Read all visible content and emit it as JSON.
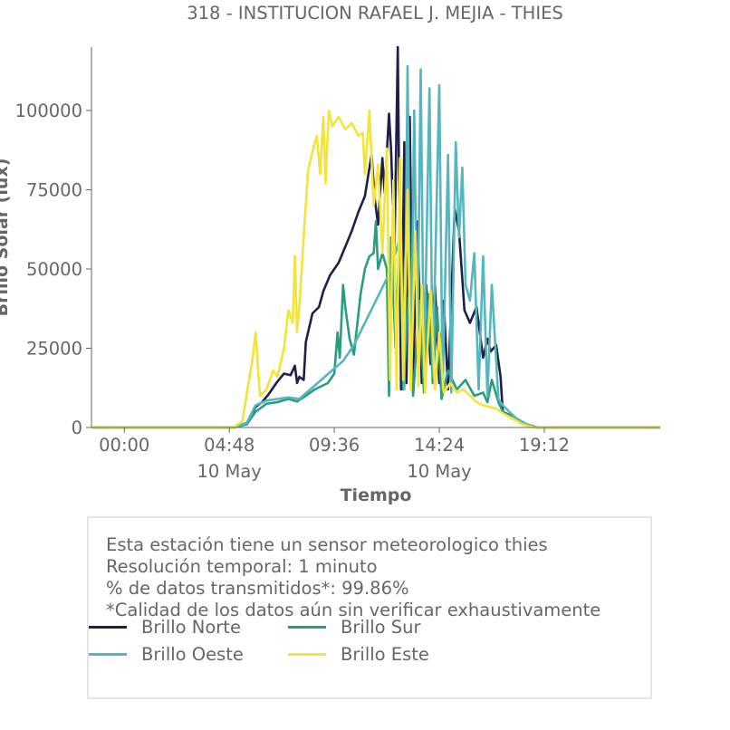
{
  "chart_data": {
    "type": "line",
    "title": "318 - INSTITUCION RAFAEL J. MEJIA - THIES",
    "xlabel": "Tiempo",
    "ylabel": "Brillo Solar (lux)",
    "x_unit": "hours since 00:00 10 May",
    "xlim": [
      -1.5,
      24.5
    ],
    "ylim": [
      0,
      120000
    ],
    "xticks": [
      {
        "x": 0.0,
        "label": "00:00",
        "sublabel": ""
      },
      {
        "x": 4.8,
        "label": "04:48",
        "sublabel": "10 May"
      },
      {
        "x": 9.6,
        "label": "09:36",
        "sublabel": ""
      },
      {
        "x": 14.4,
        "label": "14:24",
        "sublabel": "10 May"
      },
      {
        "x": 19.2,
        "label": "19:12",
        "sublabel": ""
      }
    ],
    "yticks": [
      0,
      25000,
      50000,
      75000,
      100000
    ],
    "grid": false,
    "legend_placement": "below",
    "series": [
      {
        "name": "Brillo Norte",
        "color": "#1f1f4b",
        "points": [
          [
            -1.5,
            0
          ],
          [
            5.0,
            0
          ],
          [
            5.6,
            1500
          ],
          [
            6.0,
            6500
          ],
          [
            6.3,
            8000
          ],
          [
            6.6,
            10500
          ],
          [
            7.0,
            14500
          ],
          [
            7.3,
            17000
          ],
          [
            7.6,
            16500
          ],
          [
            7.8,
            19500
          ],
          [
            7.9,
            14000
          ],
          [
            8.0,
            16000
          ],
          [
            8.2,
            15000
          ],
          [
            8.3,
            27000
          ],
          [
            8.6,
            36000
          ],
          [
            8.9,
            38000
          ],
          [
            9.1,
            43000
          ],
          [
            9.4,
            48000
          ],
          [
            9.8,
            52000
          ],
          [
            10.1,
            57000
          ],
          [
            10.4,
            62000
          ],
          [
            10.7,
            68000
          ],
          [
            11.0,
            73000
          ],
          [
            11.3,
            86000
          ],
          [
            11.45,
            72000
          ],
          [
            11.6,
            64000
          ],
          [
            11.8,
            85000
          ],
          [
            11.9,
            74000
          ],
          [
            12.1,
            99000
          ],
          [
            12.2,
            87000
          ],
          [
            12.35,
            55000
          ],
          [
            12.5,
            120000
          ],
          [
            12.65,
            12000
          ],
          [
            12.8,
            90000
          ],
          [
            12.9,
            14000
          ],
          [
            13.05,
            98000
          ],
          [
            13.2,
            15000
          ],
          [
            13.4,
            65000
          ],
          [
            13.6,
            14000
          ],
          [
            13.8,
            45000
          ],
          [
            14.0,
            20000
          ],
          [
            14.2,
            45000
          ],
          [
            14.4,
            14000
          ],
          [
            14.6,
            40000
          ],
          [
            14.8,
            12000
          ],
          [
            15.1,
            69000
          ],
          [
            15.3,
            62000
          ],
          [
            15.55,
            37000
          ],
          [
            15.8,
            33000
          ],
          [
            16.1,
            38000
          ],
          [
            16.4,
            22000
          ],
          [
            16.6,
            28000
          ],
          [
            16.75,
            24000
          ],
          [
            17.0,
            26000
          ],
          [
            17.2,
            16000
          ],
          [
            17.3,
            5000
          ],
          [
            17.6,
            4000
          ],
          [
            17.9,
            2500
          ],
          [
            18.4,
            1000
          ],
          [
            18.9,
            0
          ],
          [
            24.5,
            0
          ]
        ]
      },
      {
        "name": "Brillo Sur",
        "color": "#2a9d7e",
        "points": [
          [
            -1.5,
            0
          ],
          [
            5.0,
            0
          ],
          [
            5.6,
            1000
          ],
          [
            6.0,
            5000
          ],
          [
            6.5,
            7500
          ],
          [
            7.0,
            8000
          ],
          [
            7.5,
            9000
          ],
          [
            7.9,
            8200
          ],
          [
            8.3,
            10000
          ],
          [
            8.7,
            12000
          ],
          [
            9.0,
            13000
          ],
          [
            9.3,
            14000
          ],
          [
            9.6,
            17000
          ],
          [
            9.75,
            30000
          ],
          [
            9.85,
            22000
          ],
          [
            10.0,
            45000
          ],
          [
            10.1,
            38000
          ],
          [
            10.3,
            28000
          ],
          [
            10.5,
            23000
          ],
          [
            10.8,
            42000
          ],
          [
            11.0,
            50000
          ],
          [
            11.2,
            54000
          ],
          [
            11.4,
            55000
          ],
          [
            11.5,
            65000
          ],
          [
            11.6,
            50000
          ],
          [
            11.8,
            55000
          ],
          [
            12.0,
            50000
          ],
          [
            12.1,
            10000
          ],
          [
            12.2,
            60000
          ],
          [
            12.4,
            25000
          ],
          [
            12.6,
            66000
          ],
          [
            12.75,
            12000
          ],
          [
            13.0,
            41000
          ],
          [
            13.2,
            10000
          ],
          [
            13.5,
            40000
          ],
          [
            13.7,
            11000
          ],
          [
            13.9,
            42000
          ],
          [
            14.1,
            14000
          ],
          [
            14.3,
            38000
          ],
          [
            14.5,
            9000
          ],
          [
            14.8,
            18000
          ],
          [
            15.2,
            12000
          ],
          [
            15.6,
            15000
          ],
          [
            16.0,
            10000
          ],
          [
            16.4,
            11000
          ],
          [
            16.6,
            8000
          ],
          [
            16.8,
            15000
          ],
          [
            17.1,
            8000
          ],
          [
            17.3,
            5000
          ],
          [
            17.8,
            3000
          ],
          [
            18.4,
            1000
          ],
          [
            18.9,
            0
          ],
          [
            24.5,
            0
          ]
        ]
      },
      {
        "name": "Brillo Oeste",
        "color": "#56b6bd",
        "points": [
          [
            -1.5,
            0
          ],
          [
            5.0,
            0
          ],
          [
            5.6,
            1500
          ],
          [
            6.0,
            7000
          ],
          [
            6.5,
            8500
          ],
          [
            7.0,
            9000
          ],
          [
            7.5,
            9500
          ],
          [
            8.0,
            9000
          ],
          [
            8.5,
            12000
          ],
          [
            9.0,
            15000
          ],
          [
            9.5,
            18000
          ],
          [
            10.0,
            21000
          ],
          [
            10.5,
            26000
          ],
          [
            11.0,
            33000
          ],
          [
            11.5,
            40000
          ],
          [
            12.0,
            47000
          ],
          [
            12.4,
            55000
          ],
          [
            12.6,
            60000
          ],
          [
            12.8,
            12000
          ],
          [
            12.95,
            114000
          ],
          [
            13.1,
            14000
          ],
          [
            13.25,
            100000
          ],
          [
            13.4,
            25000
          ],
          [
            13.55,
            113000
          ],
          [
            13.7,
            16000
          ],
          [
            13.95,
            107000
          ],
          [
            14.1,
            16000
          ],
          [
            14.4,
            108000
          ],
          [
            14.55,
            12000
          ],
          [
            14.8,
            86000
          ],
          [
            14.95,
            11000
          ],
          [
            15.15,
            90000
          ],
          [
            15.3,
            60000
          ],
          [
            15.45,
            82000
          ],
          [
            15.6,
            45000
          ],
          [
            15.8,
            40000
          ],
          [
            16.0,
            55000
          ],
          [
            16.2,
            12000
          ],
          [
            16.4,
            54000
          ],
          [
            16.6,
            10000
          ],
          [
            16.8,
            45000
          ],
          [
            17.1,
            9000
          ],
          [
            17.3,
            7000
          ],
          [
            17.6,
            5000
          ],
          [
            17.9,
            3000
          ],
          [
            18.4,
            1000
          ],
          [
            18.9,
            0
          ],
          [
            24.5,
            0
          ]
        ]
      },
      {
        "name": "Brillo Este",
        "color": "#f2e43a",
        "points": [
          [
            -1.5,
            0
          ],
          [
            5.0,
            0
          ],
          [
            5.4,
            2000
          ],
          [
            5.7,
            15000
          ],
          [
            5.85,
            21000
          ],
          [
            6.0,
            30000
          ],
          [
            6.2,
            10000
          ],
          [
            6.5,
            12000
          ],
          [
            6.8,
            18000
          ],
          [
            7.0,
            16000
          ],
          [
            7.3,
            25000
          ],
          [
            7.5,
            37000
          ],
          [
            7.7,
            33000
          ],
          [
            7.8,
            54000
          ],
          [
            7.9,
            30000
          ],
          [
            8.0,
            38000
          ],
          [
            8.2,
            60000
          ],
          [
            8.4,
            81000
          ],
          [
            8.6,
            87000
          ],
          [
            8.8,
            92000
          ],
          [
            8.95,
            80000
          ],
          [
            9.1,
            98000
          ],
          [
            9.2,
            77000
          ],
          [
            9.35,
            100000
          ],
          [
            9.5,
            95000
          ],
          [
            9.8,
            98000
          ],
          [
            10.1,
            94000
          ],
          [
            10.4,
            96000
          ],
          [
            10.7,
            92000
          ],
          [
            10.9,
            93000
          ],
          [
            11.0,
            80000
          ],
          [
            11.2,
            100000
          ],
          [
            11.4,
            70000
          ],
          [
            11.6,
            83000
          ],
          [
            11.8,
            55000
          ],
          [
            12.0,
            88000
          ],
          [
            12.15,
            15000
          ],
          [
            12.3,
            78000
          ],
          [
            12.45,
            12000
          ],
          [
            12.6,
            85000
          ],
          [
            12.75,
            15000
          ],
          [
            12.95,
            75000
          ],
          [
            13.1,
            12000
          ],
          [
            13.3,
            62000
          ],
          [
            13.45,
            13000
          ],
          [
            13.6,
            45000
          ],
          [
            13.75,
            11000
          ],
          [
            14.0,
            43000
          ],
          [
            14.2,
            12000
          ],
          [
            14.4,
            30000
          ],
          [
            14.6,
            11000
          ],
          [
            14.9,
            14000
          ],
          [
            15.2,
            11000
          ],
          [
            15.5,
            12000
          ],
          [
            15.8,
            10000
          ],
          [
            16.1,
            8000
          ],
          [
            16.4,
            7000
          ],
          [
            16.7,
            6500
          ],
          [
            17.0,
            6000
          ],
          [
            17.3,
            4500
          ],
          [
            17.7,
            3000
          ],
          [
            18.2,
            1000
          ],
          [
            18.7,
            0
          ],
          [
            24.5,
            0
          ]
        ]
      }
    ]
  },
  "info": {
    "lines": [
      "Esta estación tiene un sensor meteorologico thies",
      "Resolución temporal: 1 minuto",
      "% de datos transmitidos*: 99.86%",
      "*Calidad de los datos aún sin verificar exhaustivamente"
    ]
  }
}
